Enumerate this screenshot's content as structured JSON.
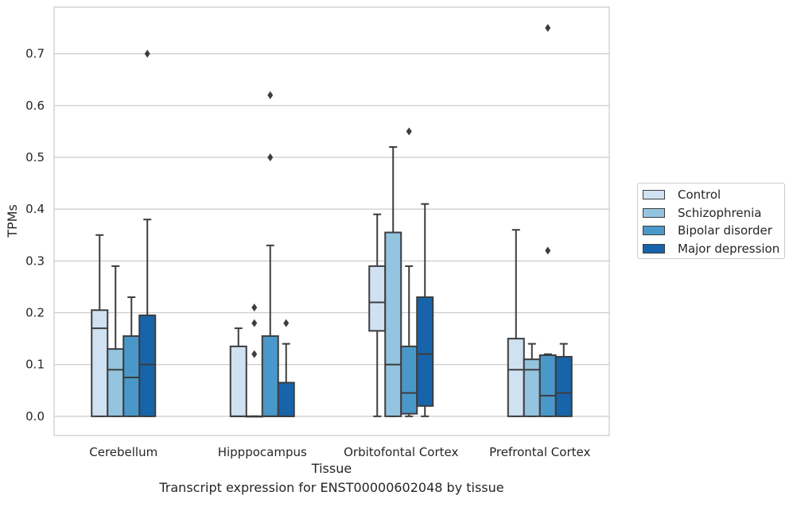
{
  "caption": "Transcript expression for ENST00000602048 by tissue",
  "chart_data": {
    "type": "box",
    "xlabel": "Tissue",
    "ylabel": "TPMs",
    "ylim": [
      -0.037,
      0.79
    ],
    "yticks": [
      "0.0",
      "0.1",
      "0.2",
      "0.3",
      "0.4",
      "0.5",
      "0.6",
      "0.7"
    ],
    "grid": "horizontal",
    "legend_placement": "right, outside",
    "categories": [
      "Cerebellum",
      "Hipppocampus",
      "Orbitofontal Cortex",
      "Prefrontal Cortex"
    ],
    "series": [
      {
        "name": "Control",
        "color": "#d0e1f2",
        "boxes": [
          {
            "whislo": 0.0,
            "q1": 0.0,
            "med": 0.17,
            "q3": 0.205,
            "whishi": 0.35,
            "fliers": []
          },
          {
            "whislo": 0.0,
            "q1": 0.0,
            "med": 0.0,
            "q3": 0.135,
            "whishi": 0.17,
            "fliers": []
          },
          {
            "whislo": 0.0,
            "q1": 0.165,
            "med": 0.22,
            "q3": 0.29,
            "whishi": 0.39,
            "fliers": []
          },
          {
            "whislo": 0.0,
            "q1": 0.0,
            "med": 0.09,
            "q3": 0.15,
            "whishi": 0.36,
            "fliers": []
          }
        ]
      },
      {
        "name": "Schizophrenia",
        "color": "#94c4df",
        "boxes": [
          {
            "whislo": 0.0,
            "q1": 0.0,
            "med": 0.09,
            "q3": 0.13,
            "whishi": 0.29,
            "fliers": []
          },
          {
            "whislo": 0.0,
            "q1": 0.0,
            "med": 0.0,
            "q3": 0.0,
            "whishi": 0.0,
            "fliers": [
              0.21,
              0.18,
              0.12
            ]
          },
          {
            "whislo": 0.0,
            "q1": 0.0,
            "med": 0.1,
            "q3": 0.355,
            "whishi": 0.52,
            "fliers": []
          },
          {
            "whislo": 0.0,
            "q1": 0.0,
            "med": 0.09,
            "q3": 0.11,
            "whishi": 0.14,
            "fliers": []
          }
        ]
      },
      {
        "name": "Bipolar disorder",
        "color": "#4a98c9",
        "boxes": [
          {
            "whislo": 0.0,
            "q1": 0.0,
            "med": 0.075,
            "q3": 0.155,
            "whishi": 0.23,
            "fliers": []
          },
          {
            "whislo": 0.0,
            "q1": 0.0,
            "med": 0.0,
            "q3": 0.155,
            "whishi": 0.33,
            "fliers": [
              0.62,
              0.5
            ]
          },
          {
            "whislo": 0.0,
            "q1": 0.005,
            "med": 0.045,
            "q3": 0.135,
            "whishi": 0.29,
            "fliers": [
              0.55
            ]
          },
          {
            "whislo": 0.0,
            "q1": 0.0,
            "med": 0.04,
            "q3": 0.118,
            "whishi": 0.12,
            "fliers": [
              0.32,
              0.75
            ]
          }
        ]
      },
      {
        "name": "Major depression",
        "color": "#1764ab",
        "boxes": [
          {
            "whislo": 0.0,
            "q1": 0.0,
            "med": 0.1,
            "q3": 0.195,
            "whishi": 0.38,
            "fliers": [
              0.7
            ]
          },
          {
            "whislo": 0.0,
            "q1": 0.0,
            "med": 0.0,
            "q3": 0.065,
            "whishi": 0.14,
            "fliers": [
              0.18
            ]
          },
          {
            "whislo": 0.0,
            "q1": 0.02,
            "med": 0.12,
            "q3": 0.23,
            "whishi": 0.41,
            "fliers": []
          },
          {
            "whislo": 0.0,
            "q1": 0.0,
            "med": 0.045,
            "q3": 0.115,
            "whishi": 0.14,
            "fliers": []
          }
        ]
      }
    ]
  }
}
